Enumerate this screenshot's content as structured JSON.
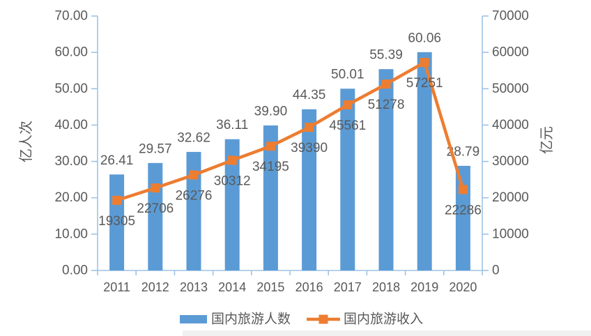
{
  "chart_data": {
    "type": "combo-bar-line",
    "title": "",
    "categories": [
      "2011",
      "2012",
      "2013",
      "2014",
      "2015",
      "2016",
      "2017",
      "2018",
      "2019",
      "2020"
    ],
    "series": [
      {
        "name": "国内旅游人数",
        "type": "bar",
        "axis": "left",
        "values": [
          26.41,
          29.57,
          32.62,
          36.11,
          39.9,
          44.35,
          50.01,
          55.39,
          60.06,
          28.79
        ],
        "data_labels": [
          "26.41",
          "29.57",
          "32.62",
          "36.11",
          "39.90",
          "44.35",
          "50.01",
          "55.39",
          "60.06",
          "28.79"
        ]
      },
      {
        "name": "国内旅游收入",
        "type": "line",
        "axis": "right",
        "values": [
          19305,
          22706,
          26276,
          30312,
          34195,
          39390,
          45561,
          51278,
          57251,
          22286
        ],
        "data_labels": [
          "19305",
          "22706",
          "26276",
          "30312",
          "34195",
          "39390",
          "45561",
          "51278",
          "57251",
          "22286"
        ]
      }
    ],
    "left_axis": {
      "title": "亿人次",
      "min": 0,
      "max": 70,
      "tick_step": 10,
      "tick_labels": [
        "0.00",
        "10.00",
        "20.00",
        "30.00",
        "40.00",
        "50.00",
        "60.00",
        "70.00"
      ]
    },
    "right_axis": {
      "title": "亿元",
      "min": 0,
      "max": 70000,
      "tick_step": 10000,
      "tick_labels": [
        "0",
        "10000",
        "20000",
        "30000",
        "40000",
        "50000",
        "60000",
        "70000"
      ]
    },
    "x_axis": {
      "tick_labels": [
        "2011",
        "2012",
        "2013",
        "2014",
        "2015",
        "2016",
        "2017",
        "2018",
        "2019",
        "2020"
      ]
    },
    "legend": {
      "position": "bottom",
      "items": [
        {
          "label": "国内旅游人数",
          "marker": "bar-swatch",
          "color": "#5B9BD5"
        },
        {
          "label": "国内旅游收入",
          "marker": "line-with-square",
          "color": "#ED7D31"
        }
      ]
    },
    "grid": false
  },
  "colors": {
    "bar_fill": "#5B9BD5",
    "line_stroke": "#ED7D31",
    "axis_line": "#9DC3E6",
    "tick_text": "#595959",
    "data_label_text": "#595959",
    "axis_title_text": "#595959",
    "background": "#FFFFFF",
    "bottom_strip": "#F1F1F1"
  }
}
